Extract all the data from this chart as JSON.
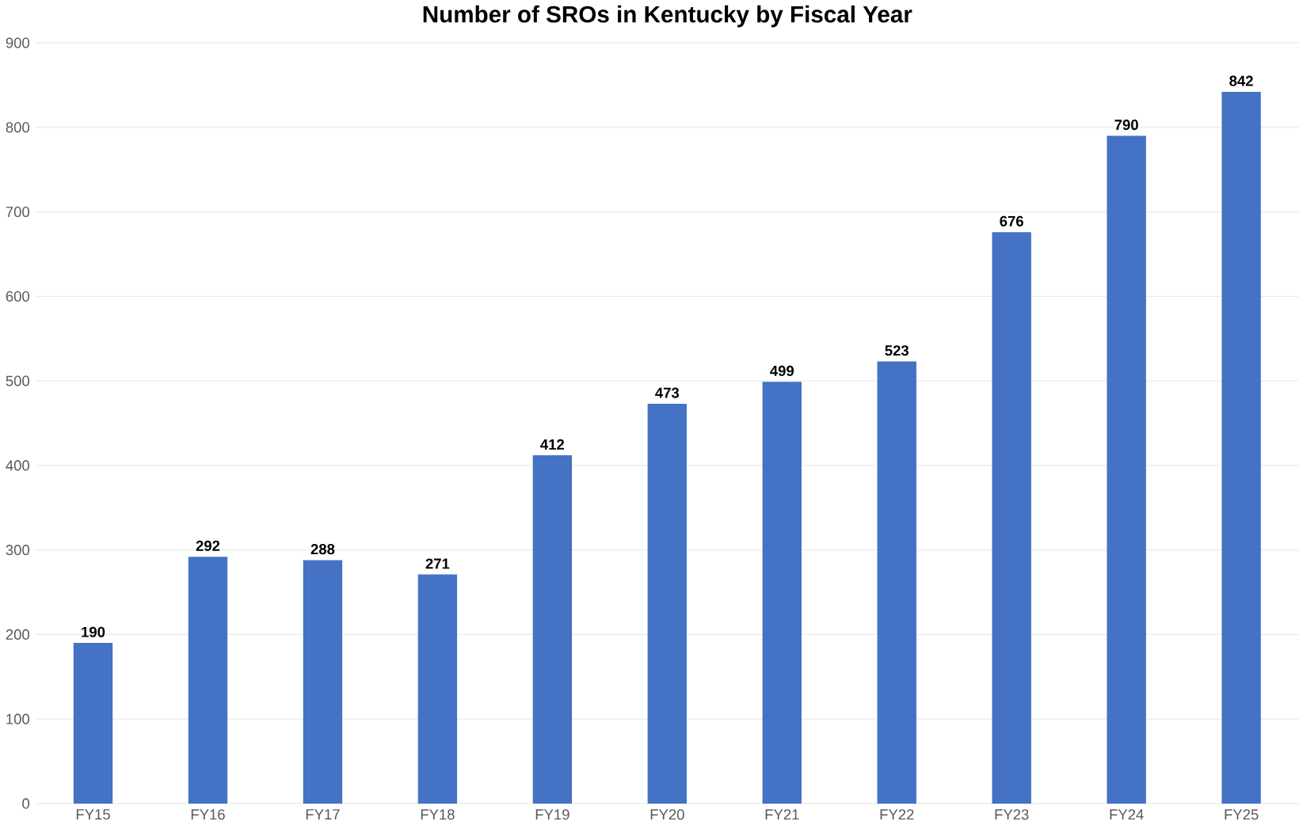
{
  "chart_data": {
    "type": "bar",
    "title": "Number of SROs in Kentucky by Fiscal Year",
    "categories": [
      "FY15",
      "FY16",
      "FY17",
      "FY18",
      "FY19",
      "FY20",
      "FY21",
      "FY22",
      "FY23",
      "FY24",
      "FY25"
    ],
    "values": [
      190,
      292,
      288,
      271,
      412,
      473,
      499,
      523,
      676,
      790,
      842
    ],
    "color": "#4472c4",
    "ylim": [
      0,
      900
    ],
    "yticks": [
      0,
      100,
      200,
      300,
      400,
      500,
      600,
      700,
      800,
      900
    ],
    "grid": "y",
    "data_labels": true
  }
}
